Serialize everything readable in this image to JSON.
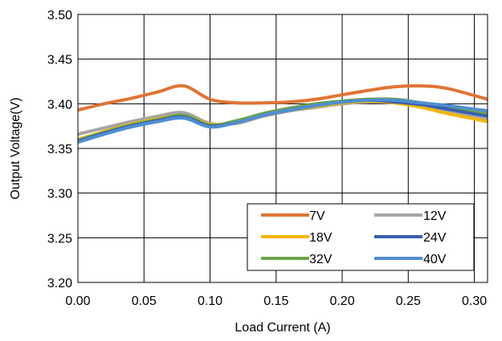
{
  "chart_data": {
    "type": "line",
    "title": "",
    "xlabel": "Load Current (A)",
    "ylabel": "Output Voltage(V)",
    "xlim": [
      0,
      0.31
    ],
    "ylim": [
      3.2,
      3.5
    ],
    "x_ticks": [
      "0.00",
      "0.05",
      "0.10",
      "0.15",
      "0.20",
      "0.25",
      "0.30"
    ],
    "y_ticks": [
      "3.20",
      "3.25",
      "3.30",
      "3.35",
      "3.40",
      "3.45",
      "3.50"
    ],
    "grid": true,
    "legend_position": "bottom-right",
    "x": [
      0,
      0.02,
      0.04,
      0.06,
      0.08,
      0.1,
      0.12,
      0.14,
      0.16,
      0.18,
      0.2,
      0.22,
      0.24,
      0.26,
      0.28,
      0.31
    ],
    "series": [
      {
        "name": "7V",
        "color": "#E07434",
        "values": [
          3.393,
          3.4,
          3.406,
          3.413,
          3.42,
          3.405,
          3.401,
          3.401,
          3.402,
          3.405,
          3.41,
          3.415,
          3.419,
          3.42,
          3.417,
          3.405
        ]
      },
      {
        "name": "12V",
        "color": "#A5A5A5",
        "values": [
          3.366,
          3.373,
          3.38,
          3.386,
          3.39,
          3.378,
          3.378,
          3.386,
          3.392,
          3.396,
          3.4,
          3.402,
          3.401,
          3.397,
          3.391,
          3.382
        ]
      },
      {
        "name": "18V",
        "color": "#F2B600",
        "values": [
          3.36,
          3.369,
          3.377,
          3.383,
          3.387,
          3.377,
          3.379,
          3.387,
          3.393,
          3.397,
          3.401,
          3.403,
          3.401,
          3.396,
          3.389,
          3.38
        ]
      },
      {
        "name": "24V",
        "color": "#3A5FAE",
        "values": [
          3.358,
          3.367,
          3.375,
          3.381,
          3.385,
          3.375,
          3.379,
          3.387,
          3.393,
          3.398,
          3.402,
          3.404,
          3.402,
          3.399,
          3.394,
          3.386
        ]
      },
      {
        "name": "32V",
        "color": "#6BA548",
        "values": [
          3.359,
          3.368,
          3.376,
          3.382,
          3.387,
          3.376,
          3.381,
          3.389,
          3.395,
          3.4,
          3.403,
          3.405,
          3.405,
          3.401,
          3.396,
          3.389
        ]
      },
      {
        "name": "40V",
        "color": "#4F8ED1",
        "values": [
          3.357,
          3.366,
          3.374,
          3.38,
          3.384,
          3.374,
          3.379,
          3.387,
          3.393,
          3.398,
          3.402,
          3.404,
          3.404,
          3.401,
          3.398,
          3.392
        ]
      }
    ]
  }
}
